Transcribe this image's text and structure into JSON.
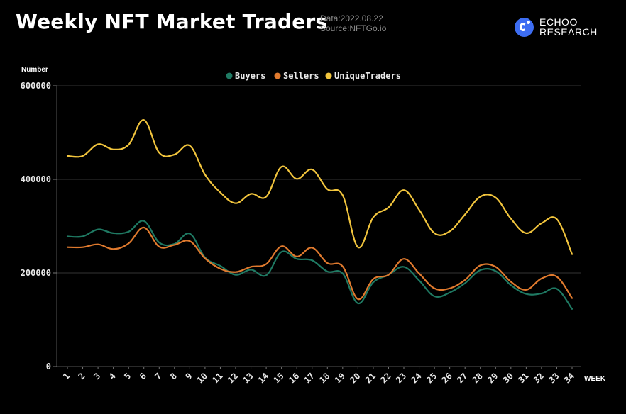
{
  "header": {
    "title": "Weekly NFT Market Traders",
    "date_line": "Data:2022.08.22",
    "source_line": "Source:NFTGo.io",
    "brand_line1": "ECHOO",
    "brand_line2": "RESEARCH"
  },
  "chart_data": {
    "type": "line",
    "ylabel": "Number",
    "xlabel": "WEEK",
    "ylim": [
      0,
      600000
    ],
    "yticks": [
      "0",
      "200000",
      "400000",
      "600000"
    ],
    "grid": true,
    "legend_position": "top-center",
    "categories": [
      "1",
      "2",
      "3",
      "4",
      "5",
      "6",
      "7",
      "8",
      "9",
      "10",
      "11",
      "12",
      "13",
      "14",
      "15",
      "16",
      "17",
      "18",
      "19",
      "20",
      "21",
      "22",
      "23",
      "24",
      "25",
      "26",
      "27",
      "28",
      "29",
      "30",
      "31",
      "32",
      "33",
      "34"
    ],
    "series": [
      {
        "name": "Buyers",
        "color": "#1f7a63",
        "values": [
          278000,
          278000,
          293000,
          285000,
          288000,
          311000,
          265000,
          262000,
          284000,
          233000,
          215000,
          196000,
          207000,
          195000,
          245000,
          230000,
          227000,
          203000,
          199000,
          135000,
          180000,
          196000,
          213000,
          184000,
          150000,
          158000,
          178000,
          206000,
          204000,
          174000,
          155000,
          156000,
          166000,
          123000
        ]
      },
      {
        "name": "Sellers",
        "color": "#e07a2e",
        "values": [
          255000,
          255000,
          261000,
          251000,
          263000,
          297000,
          256000,
          260000,
          268000,
          231000,
          209000,
          202000,
          213000,
          219000,
          257000,
          235000,
          254000,
          221000,
          214000,
          144000,
          187000,
          196000,
          230000,
          199000,
          167000,
          167000,
          185000,
          216000,
          213000,
          181000,
          164000,
          188000,
          192000,
          146000
        ]
      },
      {
        "name": "UniqueTraders",
        "color": "#f2c53d",
        "values": [
          450000,
          450000,
          475000,
          464000,
          474000,
          527000,
          457000,
          453000,
          472000,
          410000,
          372000,
          349000,
          369000,
          363000,
          427000,
          401000,
          421000,
          379000,
          366000,
          255000,
          319000,
          340000,
          377000,
          335000,
          285000,
          289000,
          325000,
          363000,
          361000,
          316000,
          285000,
          306000,
          315000,
          240000
        ]
      }
    ]
  }
}
